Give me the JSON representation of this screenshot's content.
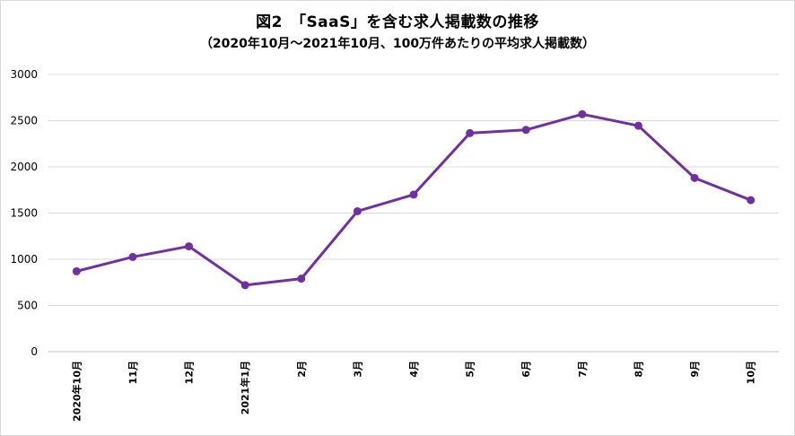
{
  "chart_data": {
    "type": "line",
    "title": "図2　「SaaS」を含む求人掲載数の推移",
    "subtitle": "（2020年10月～2021年10月、100万件あたりの平均求人掲載数）",
    "xlabel": "",
    "ylabel": "",
    "categories": [
      "2020年10月",
      "11月",
      "12月",
      "2021年1月",
      "2月",
      "3月",
      "4月",
      "5月",
      "6月",
      "7月",
      "8月",
      "9月",
      "10月"
    ],
    "series": [
      {
        "values": [
          870,
          1025,
          1140,
          720,
          790,
          1520,
          1700,
          2365,
          2400,
          2570,
          2445,
          1880,
          1640
        ]
      }
    ],
    "ylim": [
      0,
      3000
    ],
    "yticks": [
      0,
      500,
      1000,
      1500,
      2000,
      2500,
      3000
    ],
    "grid": true,
    "legend": "none",
    "color": "#7030a0"
  }
}
